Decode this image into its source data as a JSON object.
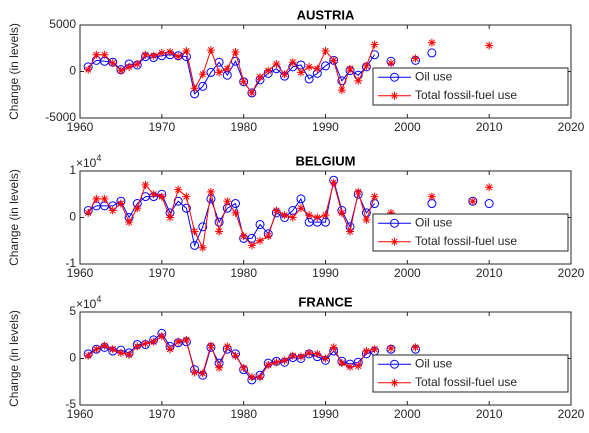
{
  "chart_data": [
    {
      "type": "line",
      "title": "AUSTRIA",
      "ylabel": "Change (in levels)",
      "x": [
        1961,
        1962,
        1963,
        1964,
        1965,
        1966,
        1967,
        1968,
        1969,
        1970,
        1971,
        1972,
        1973,
        1974,
        1975,
        1976,
        1977,
        1978,
        1979,
        1980,
        1981,
        1982,
        1983,
        1984,
        1985,
        1986,
        1987,
        1988,
        1989,
        1990,
        1991,
        1992,
        1993,
        1994,
        1995,
        1996,
        1997,
        1998,
        1999,
        2000,
        2001,
        2002,
        2003,
        2004,
        2005,
        2006,
        2007,
        2008,
        2009,
        2010
      ],
      "series": [
        {
          "name": "Oil use",
          "color": "#0000ff",
          "marker": "circle",
          "values": [
            500,
            1200,
            1100,
            1000,
            200,
            800,
            700,
            1600,
            1500,
            1700,
            1800,
            1700,
            1600,
            -2400,
            -1600,
            -100,
            1000,
            -400,
            1100,
            -1100,
            -2300,
            -900,
            -200,
            300,
            -500,
            500,
            700,
            -800,
            -200,
            600,
            1200,
            -1000,
            100,
            -400,
            500,
            1800,
            null,
            1100,
            null,
            null,
            1200,
            null,
            2000,
            null,
            null,
            null,
            null,
            null,
            null,
            null
          ]
        },
        {
          "name": "Total fossil-fuel use",
          "color": "#ff0000",
          "marker": "asterisk",
          "values": [
            200,
            1800,
            1800,
            900,
            100,
            500,
            800,
            1800,
            1700,
            2000,
            2100,
            1600,
            2200,
            -1800,
            -300,
            2300,
            -100,
            300,
            2100,
            -1100,
            -2300,
            -600,
            100,
            800,
            -300,
            1000,
            -100,
            500,
            300,
            2200,
            1200,
            -2000,
            300,
            -1000,
            600,
            2900,
            null,
            900,
            null,
            null,
            1400,
            null,
            3100,
            null,
            null,
            null,
            null,
            null,
            null,
            2800
          ]
        }
      ],
      "xlim": [
        1960,
        2020
      ],
      "xticks": [
        1960,
        1970,
        1980,
        1990,
        2000,
        2010,
        2020
      ],
      "ylim": [
        -5000,
        5000
      ],
      "yticks": [
        -5000,
        0,
        5000
      ],
      "legend": "lower right"
    },
    {
      "type": "line",
      "title": "BELGIUM",
      "ylabel": "Change (in levels)",
      "y_multiplier": {
        "base": "×10",
        "exponent": "4"
      },
      "x": [
        1961,
        1962,
        1963,
        1964,
        1965,
        1966,
        1967,
        1968,
        1969,
        1970,
        1971,
        1972,
        1973,
        1974,
        1975,
        1976,
        1977,
        1978,
        1979,
        1980,
        1981,
        1982,
        1983,
        1984,
        1985,
        1986,
        1987,
        1988,
        1989,
        1990,
        1991,
        1992,
        1993,
        1994,
        1995,
        1996,
        1997,
        1998,
        1999,
        2000,
        2001,
        2002,
        2003,
        2004,
        2005,
        2006,
        2007,
        2008,
        2009,
        2010
      ],
      "series": [
        {
          "name": "Oil use",
          "color": "#0000ff",
          "marker": "circle",
          "values": [
            0.15,
            0.25,
            0.25,
            0.25,
            0.35,
            0,
            0.3,
            0.45,
            0.45,
            0.5,
            0.1,
            0.35,
            0.2,
            -0.6,
            -0.2,
            0.4,
            -0.1,
            0.2,
            0.3,
            -0.45,
            -0.45,
            -0.15,
            -0.35,
            0.1,
            0,
            0.15,
            0.4,
            -0.1,
            -0.1,
            -0.1,
            0.8,
            0.15,
            -0.2,
            0.5,
            0.1,
            0.3,
            null,
            null,
            null,
            null,
            null,
            null,
            0.3,
            null,
            null,
            null,
            null,
            0.35,
            null,
            0.3
          ]
        },
        {
          "name": "Total fossil-fuel use",
          "color": "#ff0000",
          "marker": "asterisk",
          "values": [
            0.1,
            0.4,
            0.4,
            0.15,
            0.3,
            -0.1,
            0.2,
            0.7,
            0.5,
            0.45,
            0,
            0.6,
            0.45,
            -0.3,
            -0.65,
            0.55,
            -0.3,
            0.35,
            0.1,
            -0.4,
            -0.6,
            -0.5,
            -0.4,
            0.15,
            0.05,
            0,
            0.2,
            0.05,
            0,
            0.05,
            0.75,
            0.1,
            -0.3,
            0.55,
            -0.05,
            0.45,
            null,
            0.1,
            null,
            null,
            null,
            null,
            0.45,
            null,
            null,
            null,
            null,
            0.35,
            null,
            0.65
          ]
        }
      ],
      "xlim": [
        1960,
        2020
      ],
      "xticks": [
        1960,
        1970,
        1980,
        1990,
        2000,
        2010,
        2020
      ],
      "ylim": [
        -1,
        1
      ],
      "yticks": [
        -1,
        0,
        1
      ],
      "legend": "lower right"
    },
    {
      "type": "line",
      "title": "FRANCE",
      "ylabel": "Change (in levels)",
      "y_multiplier": {
        "base": "×10",
        "exponent": "4"
      },
      "x": [
        1961,
        1962,
        1963,
        1964,
        1965,
        1966,
        1967,
        1968,
        1969,
        1970,
        1971,
        1972,
        1973,
        1974,
        1975,
        1976,
        1977,
        1978,
        1979,
        1980,
        1981,
        1982,
        1983,
        1984,
        1985,
        1986,
        1987,
        1988,
        1989,
        1990,
        1991,
        1992,
        1993,
        1994,
        1995,
        1996,
        1997,
        1998,
        1999,
        2000,
        2001,
        2002,
        2003,
        2004,
        2005,
        2006,
        2007,
        2008,
        2009,
        2010
      ],
      "series": [
        {
          "name": "Oil use",
          "color": "#0000ff",
          "marker": "circle",
          "values": [
            0.5,
            1.0,
            1.2,
            0.8,
            0.9,
            0.6,
            1.5,
            1.5,
            2.0,
            2.7,
            1.3,
            1.7,
            1.8,
            -1.2,
            -1.8,
            1.2,
            -0.5,
            1.0,
            0.5,
            -1.2,
            -2.3,
            -1.8,
            -0.5,
            -0.3,
            -0.4,
            0.1,
            0,
            0.5,
            0.2,
            -0.2,
            0.8,
            -0.3,
            -0.6,
            -0.4,
            0.5,
            0.8,
            null,
            1.0,
            null,
            null,
            1.0,
            null,
            null,
            null,
            null,
            null,
            null,
            null,
            null,
            null
          ]
        },
        {
          "name": "Total fossil-fuel use",
          "color": "#ff0000",
          "marker": "asterisk",
          "values": [
            0.3,
            1.0,
            1.4,
            1.0,
            0.6,
            0.4,
            1.3,
            1.6,
            1.8,
            2.4,
            1.0,
            1.8,
            2.0,
            -1.5,
            -1.6,
            1.4,
            -1.0,
            1.3,
            0.3,
            -1.0,
            -2.0,
            -2.0,
            -0.7,
            -0.4,
            -0.2,
            0.3,
            0.2,
            0.6,
            0.5,
            0,
            1.2,
            -0.5,
            -0.9,
            -0.8,
            0.8,
            1.0,
            null,
            1.1,
            null,
            null,
            1.2,
            null,
            null,
            null,
            null,
            null,
            null,
            null,
            null,
            null
          ]
        }
      ],
      "xlim": [
        1960,
        2020
      ],
      "xticks": [
        1960,
        1970,
        1980,
        1990,
        2000,
        2010,
        2020
      ],
      "ylim": [
        -5,
        5
      ],
      "yticks": [
        -5,
        0,
        5
      ],
      "legend": "lower right"
    }
  ]
}
